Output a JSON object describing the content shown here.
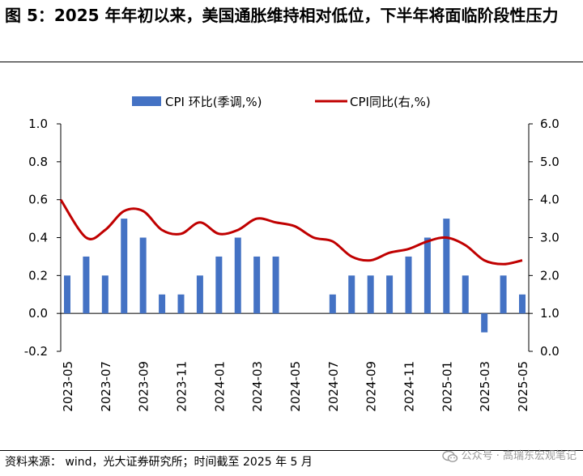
{
  "figure": {
    "title": "图 5：2025 年年初以来，美国通胀维持相对低位，下半年将面临阶段性压力",
    "source": "资料来源：  wind，光大证券研究所；时间截至 2025 年 5 月",
    "watermark": "公众号 · 高瑞东宏观笔记",
    "watermark_icon": "wechat-icon"
  },
  "colors": {
    "bar": "#4472C4",
    "line": "#C00000",
    "axis": "#000000"
  },
  "chart_data": {
    "type": "bar+line",
    "legend": [
      {
        "label": "CPI 环比(季调,%)",
        "kind": "bar"
      },
      {
        "label": "CPI同比(右,%)",
        "kind": "line"
      }
    ],
    "legend_position": "top",
    "grid": false,
    "x_tick_labels": [
      "2023-05",
      "2023-07",
      "2023-09",
      "2023-11",
      "2024-01",
      "2024-03",
      "2024-05",
      "2024-07",
      "2024-09",
      "2024-11",
      "2025-01",
      "2025-03",
      "2025-05"
    ],
    "left_axis": {
      "min": -0.2,
      "max": 1.0,
      "ticks": [
        "1.0",
        "0.8",
        "0.6",
        "0.4",
        "0.2",
        "0.0",
        "-0.2"
      ]
    },
    "right_axis": {
      "min": 0.0,
      "max": 6.0,
      "ticks": [
        "6.0",
        "5.0",
        "4.0",
        "3.0",
        "2.0",
        "1.0",
        "0.0"
      ]
    },
    "x": [
      "2023-05",
      "2023-06",
      "2023-07",
      "2023-08",
      "2023-09",
      "2023-10",
      "2023-11",
      "2023-12",
      "2024-01",
      "2024-02",
      "2024-03",
      "2024-04",
      "2024-05",
      "2024-06",
      "2024-07",
      "2024-08",
      "2024-09",
      "2024-10",
      "2024-11",
      "2024-12",
      "2025-01",
      "2025-02",
      "2025-03",
      "2025-04",
      "2025-05"
    ],
    "series": [
      {
        "name": "CPI 环比(季调,%)",
        "type": "bar",
        "axis": "left",
        "values": [
          0.2,
          0.3,
          0.2,
          0.5,
          0.4,
          0.1,
          0.1,
          0.2,
          0.3,
          0.4,
          0.3,
          0.3,
          0.0,
          0.0,
          0.1,
          0.2,
          0.2,
          0.2,
          0.3,
          0.4,
          0.5,
          0.2,
          -0.1,
          0.2,
          0.1
        ]
      },
      {
        "name": "CPI同比(右,%)",
        "type": "line",
        "axis": "right",
        "values": [
          4.0,
          3.0,
          3.2,
          3.7,
          3.7,
          3.2,
          3.1,
          3.4,
          3.1,
          3.2,
          3.5,
          3.4,
          3.3,
          3.0,
          2.9,
          2.5,
          2.4,
          2.6,
          2.7,
          2.9,
          3.0,
          2.8,
          2.4,
          2.3,
          2.4
        ]
      }
    ]
  }
}
